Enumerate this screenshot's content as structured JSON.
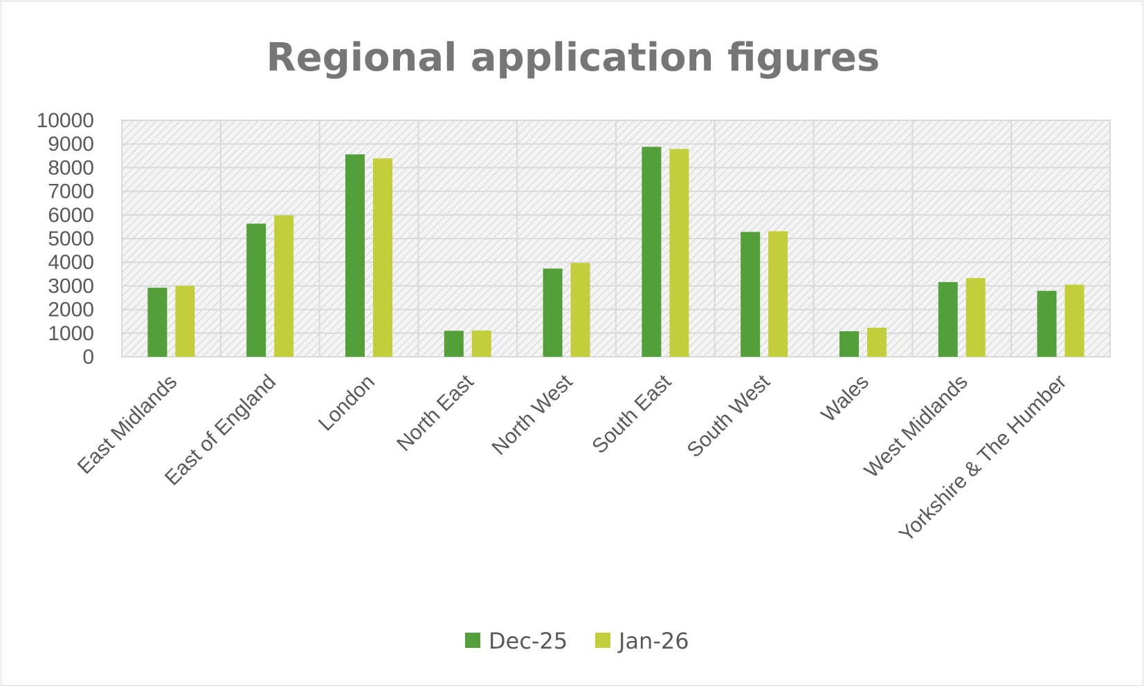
{
  "chart_data": {
    "type": "bar",
    "title": "Regional application figures",
    "xlabel": "",
    "ylabel": "",
    "ylim": [
      0,
      10000
    ],
    "yticks": [
      0,
      1000,
      2000,
      3000,
      4000,
      5000,
      6000,
      7000,
      8000,
      9000,
      10000
    ],
    "grid": true,
    "legend_position": "bottom",
    "categories": [
      "East Midlands",
      "East of England",
      "London",
      "North East",
      "North West",
      "South East",
      "South West",
      "Wales",
      "West Midlands",
      "Yorkshire & The Humber"
    ],
    "series": [
      {
        "name": "Dec-25",
        "color": "#53a03a",
        "values": [
          2920,
          5630,
          8560,
          1100,
          3730,
          8880,
          5280,
          1080,
          3160,
          2790
        ]
      },
      {
        "name": "Jan-26",
        "color": "#c2cf3a",
        "values": [
          3000,
          5980,
          8390,
          1110,
          3970,
          8790,
          5310,
          1230,
          3330,
          3050
        ]
      }
    ]
  }
}
